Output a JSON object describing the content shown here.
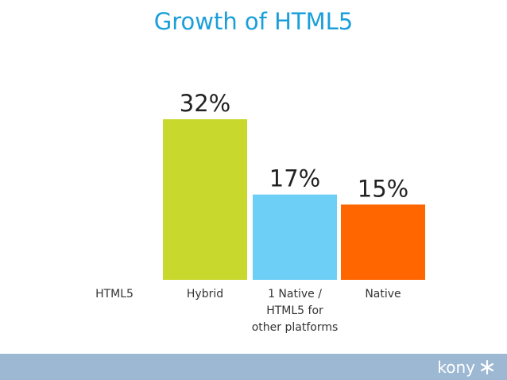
{
  "slide": {
    "title": "Growth of HTML5"
  },
  "chart_data": {
    "type": "bar",
    "categories": [
      "HTML5",
      "Hybrid",
      "1 Native /\nHTML5 for\nother platforms",
      "Native"
    ],
    "values": [
      null,
      32,
      17,
      15
    ],
    "data_labels": [
      "",
      "32%",
      "17%",
      "15%"
    ],
    "colors": [
      "#ffffff",
      "#c8d82c",
      "#6dcff6",
      "#ff6600"
    ],
    "title": "",
    "xlabel": "",
    "ylabel": "",
    "ylim": [
      0,
      32
    ],
    "grid": false
  },
  "footer": {
    "brand": "kony",
    "brand_icon": "kony-asterisk-icon"
  }
}
